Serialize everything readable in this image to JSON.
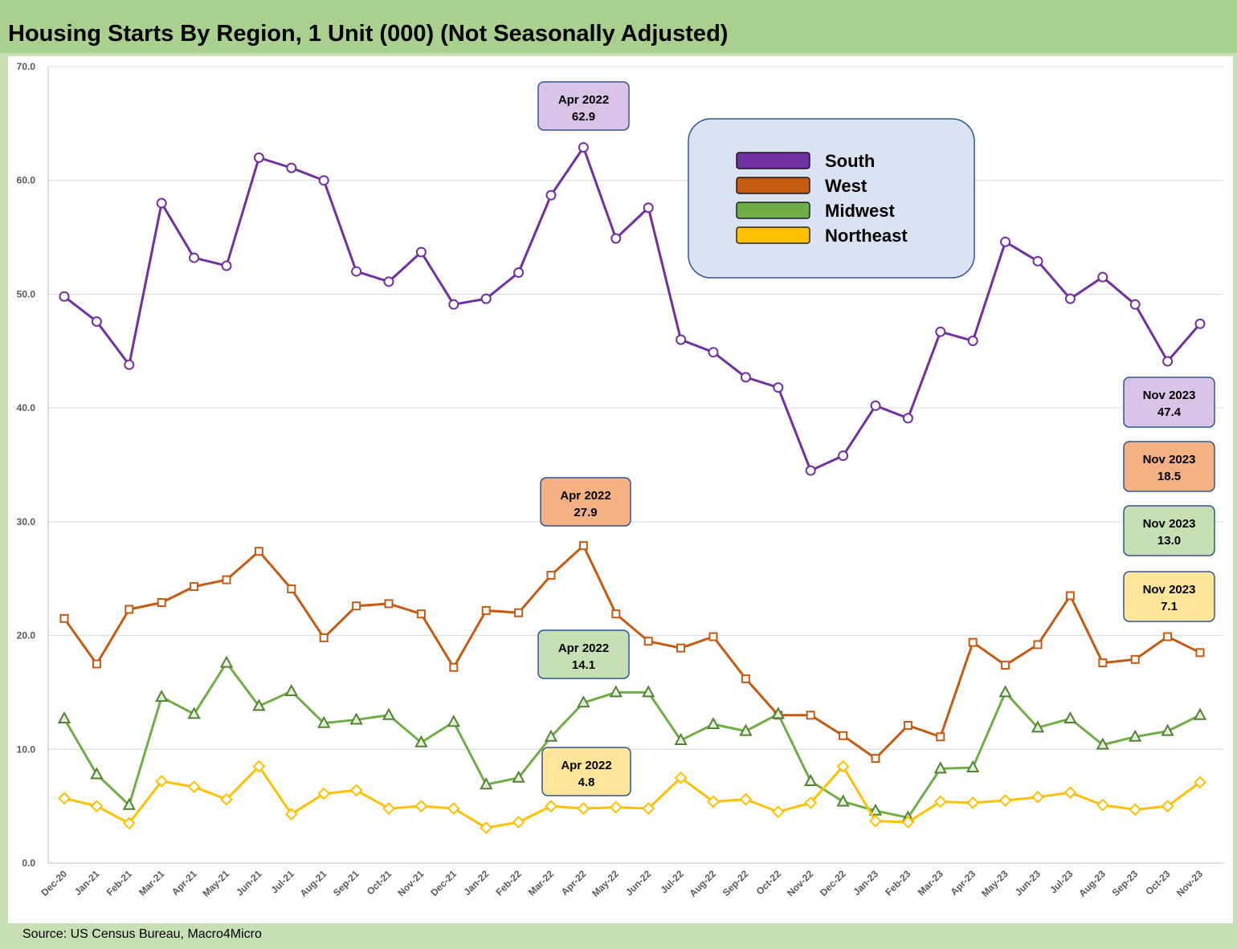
{
  "title": "Housing Starts By Region, 1 Unit (000) (Not Seasonally Adjusted)",
  "source": "Source: US Census Bureau, Macro4Micro",
  "chart_data": {
    "type": "line",
    "title": "Housing Starts By Region, 1 Unit (000) (Not Seasonally Adjusted)",
    "xlabel": "",
    "ylabel": "",
    "ylim": [
      0,
      70
    ],
    "y_ticks": [
      "0.0",
      "10.0",
      "20.0",
      "30.0",
      "40.0",
      "50.0",
      "60.0",
      "70.0"
    ],
    "grid": true,
    "legend_position": "top-right",
    "categories": [
      "Dec-20",
      "Jan-21",
      "Feb-21",
      "Mar-21",
      "Apr-21",
      "May-21",
      "Jun-21",
      "Jul-21",
      "Aug-21",
      "Sep-21",
      "Oct-21",
      "Nov-21",
      "Dec-21",
      "Jan-22",
      "Feb-22",
      "Mar-22",
      "Apr-22",
      "May-22",
      "Jun-22",
      "Jul-22",
      "Aug-22",
      "Sep-22",
      "Oct-22",
      "Nov-22",
      "Dec-22",
      "Jan-23",
      "Feb-23",
      "Mar-23",
      "Apr-23",
      "May-23",
      "Jun-23",
      "Jul-23",
      "Aug-23",
      "Sep-23",
      "Oct-23",
      "Nov-23"
    ],
    "series": [
      {
        "name": "South",
        "color": "#7030a0",
        "marker": "circle",
        "values": [
          49.8,
          47.6,
          43.8,
          58.0,
          53.2,
          52.5,
          62.0,
          61.1,
          60.0,
          52.0,
          51.1,
          53.7,
          49.1,
          49.6,
          51.9,
          58.7,
          62.9,
          54.9,
          57.6,
          46.0,
          44.9,
          42.7,
          41.8,
          34.5,
          35.8,
          40.2,
          39.1,
          46.7,
          45.9,
          54.6,
          52.9,
          49.6,
          51.5,
          49.1,
          44.1,
          47.4
        ]
      },
      {
        "name": "West",
        "color": "#c55a11",
        "marker": "square",
        "values": [
          21.5,
          17.5,
          22.3,
          22.9,
          24.3,
          24.9,
          27.4,
          24.1,
          19.8,
          22.6,
          22.8,
          21.9,
          17.2,
          22.2,
          22.0,
          25.3,
          27.9,
          21.9,
          19.5,
          18.9,
          19.9,
          16.2,
          13.0,
          13.0,
          11.2,
          9.2,
          12.1,
          11.1,
          19.4,
          17.4,
          19.2,
          23.5,
          17.6,
          17.9,
          19.9,
          18.5
        ]
      },
      {
        "name": "Midwest",
        "color": "#70ad47",
        "stroke": "#548235",
        "marker": "triangle",
        "values": [
          12.7,
          7.8,
          5.1,
          14.6,
          13.1,
          17.6,
          13.8,
          15.1,
          12.3,
          12.6,
          13.0,
          10.6,
          12.4,
          6.9,
          7.5,
          11.1,
          14.1,
          15.0,
          15.0,
          10.8,
          12.2,
          11.6,
          13.1,
          7.2,
          5.4,
          4.6,
          4.0,
          8.3,
          8.4,
          15.0,
          11.9,
          12.7,
          10.4,
          11.1,
          11.6,
          13.0
        ]
      },
      {
        "name": "Northeast",
        "color": "#ffc000",
        "marker": "diamond",
        "values": [
          5.7,
          5.0,
          3.5,
          7.2,
          6.7,
          5.6,
          8.5,
          4.3,
          6.1,
          6.4,
          4.8,
          5.0,
          4.8,
          3.1,
          3.6,
          5.0,
          4.8,
          4.9,
          4.8,
          7.5,
          5.4,
          5.6,
          4.5,
          5.3,
          8.5,
          3.7,
          3.6,
          5.4,
          5.3,
          5.5,
          5.8,
          6.2,
          5.1,
          4.7,
          5.0,
          7.1
        ]
      }
    ],
    "annotations": [
      {
        "series": "South",
        "lines": [
          "Apr 2022",
          "62.9"
        ],
        "fill": "#d9c3e6",
        "stroke": "#2f5597"
      },
      {
        "series": "West",
        "lines": [
          "Apr 2022",
          "27.9"
        ],
        "fill": "#f4b183",
        "stroke": "#2f5597"
      },
      {
        "series": "Midwest",
        "lines": [
          "Apr 2022",
          "14.1"
        ],
        "fill": "#c6e0b4",
        "stroke": "#2f5597"
      },
      {
        "series": "Northeast",
        "lines": [
          "Apr 2022",
          "4.8"
        ],
        "fill": "#ffe699",
        "stroke": "#2f5597"
      },
      {
        "series": "South",
        "lines": [
          "Nov 2023",
          "47.4"
        ],
        "fill": "#d9c3e6",
        "stroke": "#2f5597"
      },
      {
        "series": "West",
        "lines": [
          "Nov 2023",
          "18.5"
        ],
        "fill": "#f4b183",
        "stroke": "#2f5597"
      },
      {
        "series": "Midwest",
        "lines": [
          "Nov 2023",
          "13.0"
        ],
        "fill": "#c6e0b4",
        "stroke": "#2f5597"
      },
      {
        "series": "Northeast",
        "lines": [
          "Nov 2023",
          "7.1"
        ],
        "fill": "#ffe699",
        "stroke": "#2f5597"
      }
    ],
    "legend": {
      "entries": [
        {
          "label": "South",
          "color": "#7030a0"
        },
        {
          "label": "West",
          "color": "#c55a11"
        },
        {
          "label": "Midwest",
          "color": "#70ad47"
        },
        {
          "label": "Northeast",
          "color": "#ffc000"
        }
      ],
      "fill": "#dae3f3",
      "stroke": "#2f5597"
    }
  }
}
